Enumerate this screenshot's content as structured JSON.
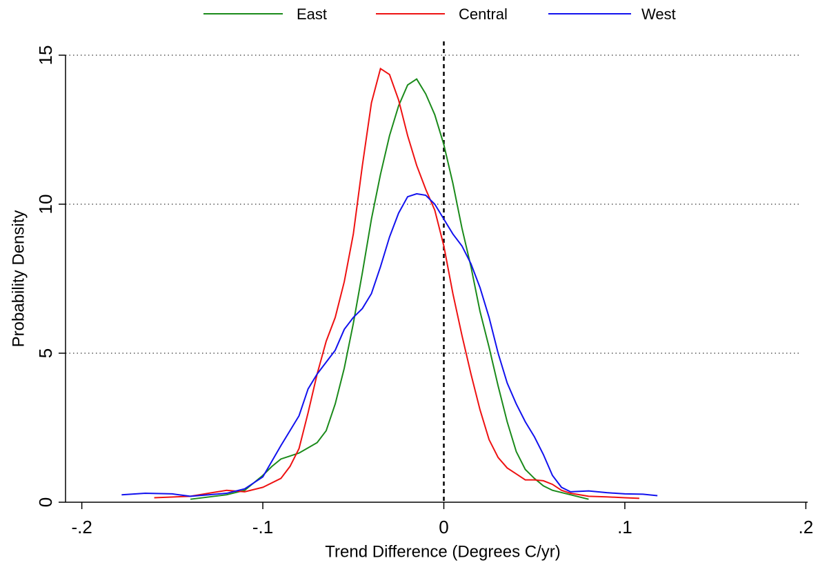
{
  "chart_data": {
    "type": "line",
    "x_label": "Trend Difference (Degrees C/yr)",
    "y_label": "Probability Density",
    "xlim": [
      -0.209,
      0.201
    ],
    "ylim": [
      0,
      15
    ],
    "xticks": [
      {
        "value": -0.2,
        "label": "-.2"
      },
      {
        "value": -0.1,
        "label": "-.1"
      },
      0,
      {
        "value": 0.1,
        "label": ".1"
      },
      {
        "value": 0.2,
        "label": ".2"
      }
    ],
    "yticks": [
      0,
      5,
      10,
      15
    ],
    "grid": true,
    "reference_line_x": 0,
    "legend_position": "top",
    "series": [
      {
        "name": "East",
        "color": "#1a8a1a",
        "x": [
          -0.14,
          -0.12,
          -0.11,
          -0.1,
          -0.095,
          -0.09,
          -0.085,
          -0.08,
          -0.07,
          -0.065,
          -0.06,
          -0.055,
          -0.05,
          -0.045,
          -0.04,
          -0.035,
          -0.03,
          -0.025,
          -0.02,
          -0.015,
          -0.01,
          -0.005,
          0,
          0.005,
          0.01,
          0.015,
          0.02,
          0.025,
          0.03,
          0.035,
          0.04,
          0.045,
          0.05,
          0.055,
          0.06,
          0.07,
          0.08
        ],
        "values": [
          0.1,
          0.25,
          0.4,
          0.9,
          1.2,
          1.45,
          1.55,
          1.65,
          2.0,
          2.4,
          3.3,
          4.5,
          6.0,
          7.7,
          9.5,
          11.0,
          12.3,
          13.3,
          14.0,
          14.2,
          13.7,
          13.0,
          12.0,
          10.7,
          9.2,
          7.9,
          6.4,
          5.2,
          3.9,
          2.7,
          1.7,
          1.1,
          0.8,
          0.55,
          0.4,
          0.25,
          0.1
        ]
      },
      {
        "name": "Central",
        "color": "#ee1111",
        "x": [
          -0.16,
          -0.14,
          -0.13,
          -0.12,
          -0.11,
          -0.1,
          -0.09,
          -0.085,
          -0.08,
          -0.075,
          -0.07,
          -0.065,
          -0.06,
          -0.055,
          -0.05,
          -0.045,
          -0.04,
          -0.035,
          -0.03,
          -0.025,
          -0.02,
          -0.015,
          -0.01,
          -0.005,
          0,
          0.005,
          0.01,
          0.015,
          0.02,
          0.025,
          0.03,
          0.035,
          0.04,
          0.045,
          0.05,
          0.055,
          0.06,
          0.065,
          0.07,
          0.08,
          0.09,
          0.1,
          0.108
        ],
        "values": [
          0.15,
          0.2,
          0.3,
          0.4,
          0.35,
          0.5,
          0.8,
          1.2,
          1.8,
          3.0,
          4.3,
          5.4,
          6.2,
          7.4,
          9.0,
          11.3,
          13.4,
          14.55,
          14.35,
          13.5,
          12.3,
          11.3,
          10.5,
          9.8,
          8.6,
          7.0,
          5.6,
          4.3,
          3.1,
          2.1,
          1.5,
          1.15,
          0.95,
          0.75,
          0.75,
          0.72,
          0.6,
          0.4,
          0.3,
          0.2,
          0.18,
          0.15,
          0.13
        ]
      },
      {
        "name": "West",
        "color": "#1111ee",
        "x": [
          -0.178,
          -0.165,
          -0.15,
          -0.14,
          -0.13,
          -0.12,
          -0.11,
          -0.1,
          -0.09,
          -0.08,
          -0.075,
          -0.07,
          -0.06,
          -0.055,
          -0.05,
          -0.045,
          -0.04,
          -0.035,
          -0.03,
          -0.025,
          -0.02,
          -0.015,
          -0.01,
          -0.005,
          0,
          0.005,
          0.01,
          0.015,
          0.02,
          0.025,
          0.03,
          0.035,
          0.04,
          0.045,
          0.05,
          0.055,
          0.06,
          0.065,
          0.07,
          0.08,
          0.09,
          0.1,
          0.11,
          0.118
        ],
        "values": [
          0.25,
          0.3,
          0.28,
          0.2,
          0.25,
          0.3,
          0.45,
          0.85,
          1.9,
          2.9,
          3.8,
          4.3,
          5.1,
          5.8,
          6.2,
          6.5,
          7.0,
          7.9,
          8.9,
          9.7,
          10.25,
          10.35,
          10.3,
          10.0,
          9.5,
          9.0,
          8.6,
          8.0,
          7.2,
          6.2,
          5.0,
          4.0,
          3.3,
          2.7,
          2.2,
          1.6,
          0.9,
          0.5,
          0.35,
          0.38,
          0.32,
          0.28,
          0.27,
          0.22
        ]
      }
    ]
  }
}
